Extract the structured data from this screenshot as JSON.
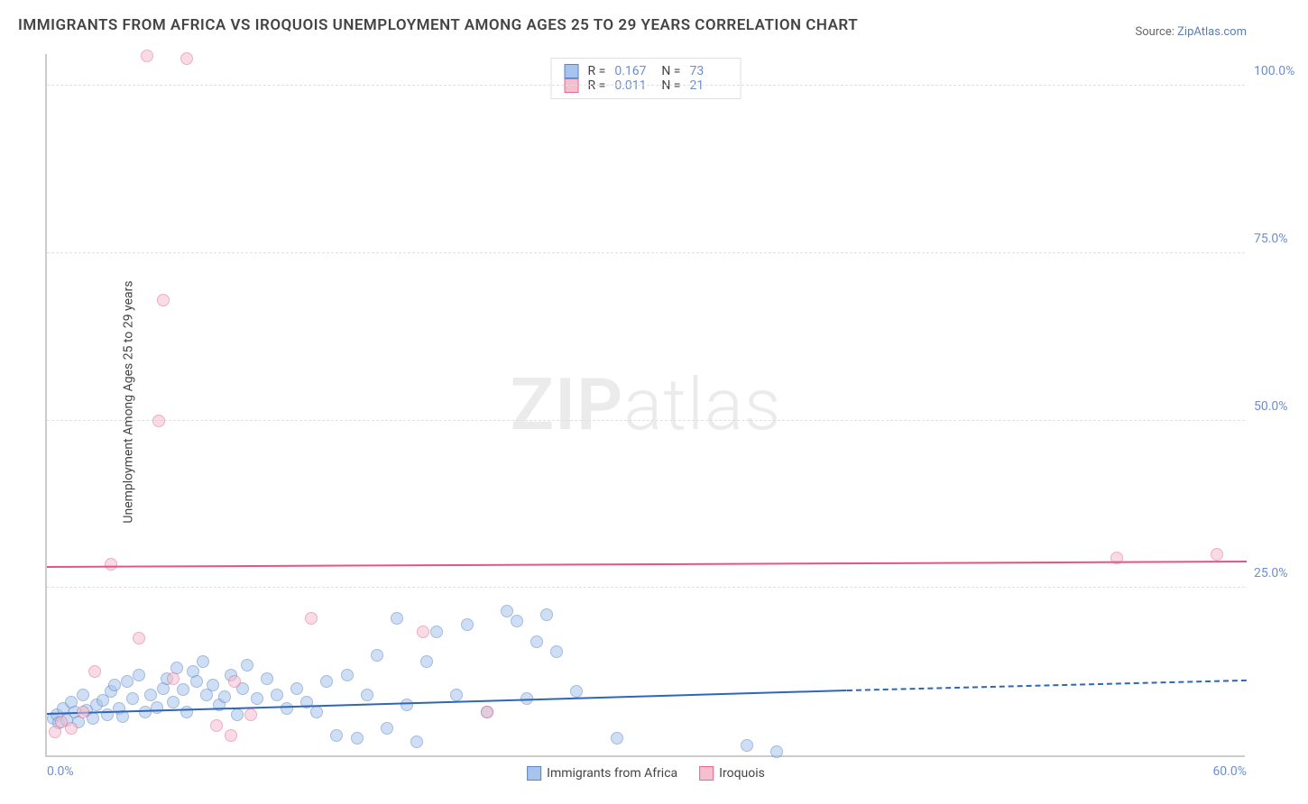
{
  "title": "IMMIGRANTS FROM AFRICA VS IROQUOIS UNEMPLOYMENT AMONG AGES 25 TO 29 YEARS CORRELATION CHART",
  "source_prefix": "Source: ",
  "source_link": "ZipAtlas.com",
  "ylabel": "Unemployment Among Ages 25 to 29 years",
  "watermark": "ZIPatlas",
  "chart": {
    "type": "scatter-with-regression",
    "xlim": [
      0,
      60
    ],
    "ylim": [
      0,
      105
    ],
    "xticks": [
      {
        "v": 0,
        "l": "0.0%"
      },
      {
        "v": 60,
        "l": "60.0%"
      }
    ],
    "yticks": [
      {
        "v": 25,
        "l": "25.0%"
      },
      {
        "v": 50,
        "l": "50.0%"
      },
      {
        "v": 75,
        "l": "75.0%"
      },
      {
        "v": 100,
        "l": "100.0%"
      }
    ],
    "grid_color": "#e0e0e0",
    "axis_color": "#cccccc",
    "background_color": "#ffffff",
    "label_color": "#6b8fd4",
    "title_fontsize": 17,
    "label_fontsize": 14,
    "series": [
      {
        "name": "Immigrants from Africa",
        "fill": "#a7c4ec",
        "stroke": "#5a84c4",
        "fill_opacity": 0.55,
        "marker_radius": 7,
        "R": "0.167",
        "N": "73",
        "trend": {
          "x0": 0,
          "y0": 6.0,
          "x1": 40,
          "y1": 9.5,
          "x2": 60,
          "y2": 11.0,
          "color": "#2e66b8",
          "dash_from": 40,
          "width": 2
        },
        "points": [
          [
            0.3,
            5.5
          ],
          [
            0.5,
            6.0
          ],
          [
            0.6,
            4.8
          ],
          [
            0.8,
            7.0
          ],
          [
            1.0,
            5.2
          ],
          [
            1.2,
            8.0
          ],
          [
            1.4,
            6.5
          ],
          [
            1.6,
            5.0
          ],
          [
            1.8,
            9.0
          ],
          [
            2.0,
            6.8
          ],
          [
            2.3,
            5.5
          ],
          [
            2.5,
            7.5
          ],
          [
            2.8,
            8.2
          ],
          [
            3.0,
            6.0
          ],
          [
            3.2,
            9.5
          ],
          [
            3.4,
            10.5
          ],
          [
            3.6,
            7.0
          ],
          [
            3.8,
            5.8
          ],
          [
            4.0,
            11.0
          ],
          [
            4.3,
            8.5
          ],
          [
            4.6,
            12.0
          ],
          [
            4.9,
            6.5
          ],
          [
            5.2,
            9.0
          ],
          [
            5.5,
            7.2
          ],
          [
            5.8,
            10.0
          ],
          [
            6.0,
            11.5
          ],
          [
            6.3,
            8.0
          ],
          [
            6.5,
            13.0
          ],
          [
            6.8,
            9.8
          ],
          [
            7.0,
            6.5
          ],
          [
            7.3,
            12.5
          ],
          [
            7.5,
            11.0
          ],
          [
            7.8,
            14.0
          ],
          [
            8.0,
            9.0
          ],
          [
            8.3,
            10.5
          ],
          [
            8.6,
            7.5
          ],
          [
            8.9,
            8.8
          ],
          [
            9.2,
            12.0
          ],
          [
            9.5,
            6.0
          ],
          [
            9.8,
            10.0
          ],
          [
            10.0,
            13.5
          ],
          [
            10.5,
            8.5
          ],
          [
            11.0,
            11.5
          ],
          [
            11.5,
            9.0
          ],
          [
            12.0,
            7.0
          ],
          [
            12.5,
            10.0
          ],
          [
            13.0,
            8.0
          ],
          [
            13.5,
            6.5
          ],
          [
            14.0,
            11.0
          ],
          [
            14.5,
            3.0
          ],
          [
            15.0,
            12.0
          ],
          [
            15.5,
            2.5
          ],
          [
            16.0,
            9.0
          ],
          [
            16.5,
            15.0
          ],
          [
            17.0,
            4.0
          ],
          [
            17.5,
            20.5
          ],
          [
            18.0,
            7.5
          ],
          [
            18.5,
            2.0
          ],
          [
            19.0,
            14.0
          ],
          [
            19.5,
            18.5
          ],
          [
            20.5,
            9.0
          ],
          [
            21.0,
            19.5
          ],
          [
            22.0,
            6.5
          ],
          [
            23.0,
            21.5
          ],
          [
            23.5,
            20.0
          ],
          [
            24.0,
            8.5
          ],
          [
            24.5,
            17.0
          ],
          [
            25.0,
            21.0
          ],
          [
            25.5,
            15.5
          ],
          [
            26.5,
            9.5
          ],
          [
            28.5,
            2.5
          ],
          [
            35.0,
            1.5
          ],
          [
            36.5,
            0.5
          ]
        ]
      },
      {
        "name": "Iroquois",
        "fill": "#f4bfcf",
        "stroke": "#e46a92",
        "fill_opacity": 0.55,
        "marker_radius": 7,
        "R": "0.011",
        "N": "21",
        "trend": {
          "x0": 0,
          "y0": 28.0,
          "x1": 60,
          "y1": 28.8,
          "color": "#e35583",
          "width": 2
        },
        "points": [
          [
            0.4,
            3.5
          ],
          [
            0.7,
            5.0
          ],
          [
            1.2,
            4.0
          ],
          [
            1.8,
            6.5
          ],
          [
            2.4,
            12.5
          ],
          [
            3.2,
            28.5
          ],
          [
            4.6,
            17.5
          ],
          [
            5.0,
            104.5
          ],
          [
            5.6,
            50.0
          ],
          [
            5.8,
            68.0
          ],
          [
            6.3,
            11.5
          ],
          [
            7.0,
            104.0
          ],
          [
            8.5,
            4.5
          ],
          [
            9.2,
            3.0
          ],
          [
            9.4,
            11.0
          ],
          [
            10.2,
            6.0
          ],
          [
            13.2,
            20.5
          ],
          [
            18.8,
            18.5
          ],
          [
            22.0,
            6.5
          ],
          [
            53.5,
            29.5
          ],
          [
            58.5,
            30.0
          ]
        ]
      }
    ]
  }
}
